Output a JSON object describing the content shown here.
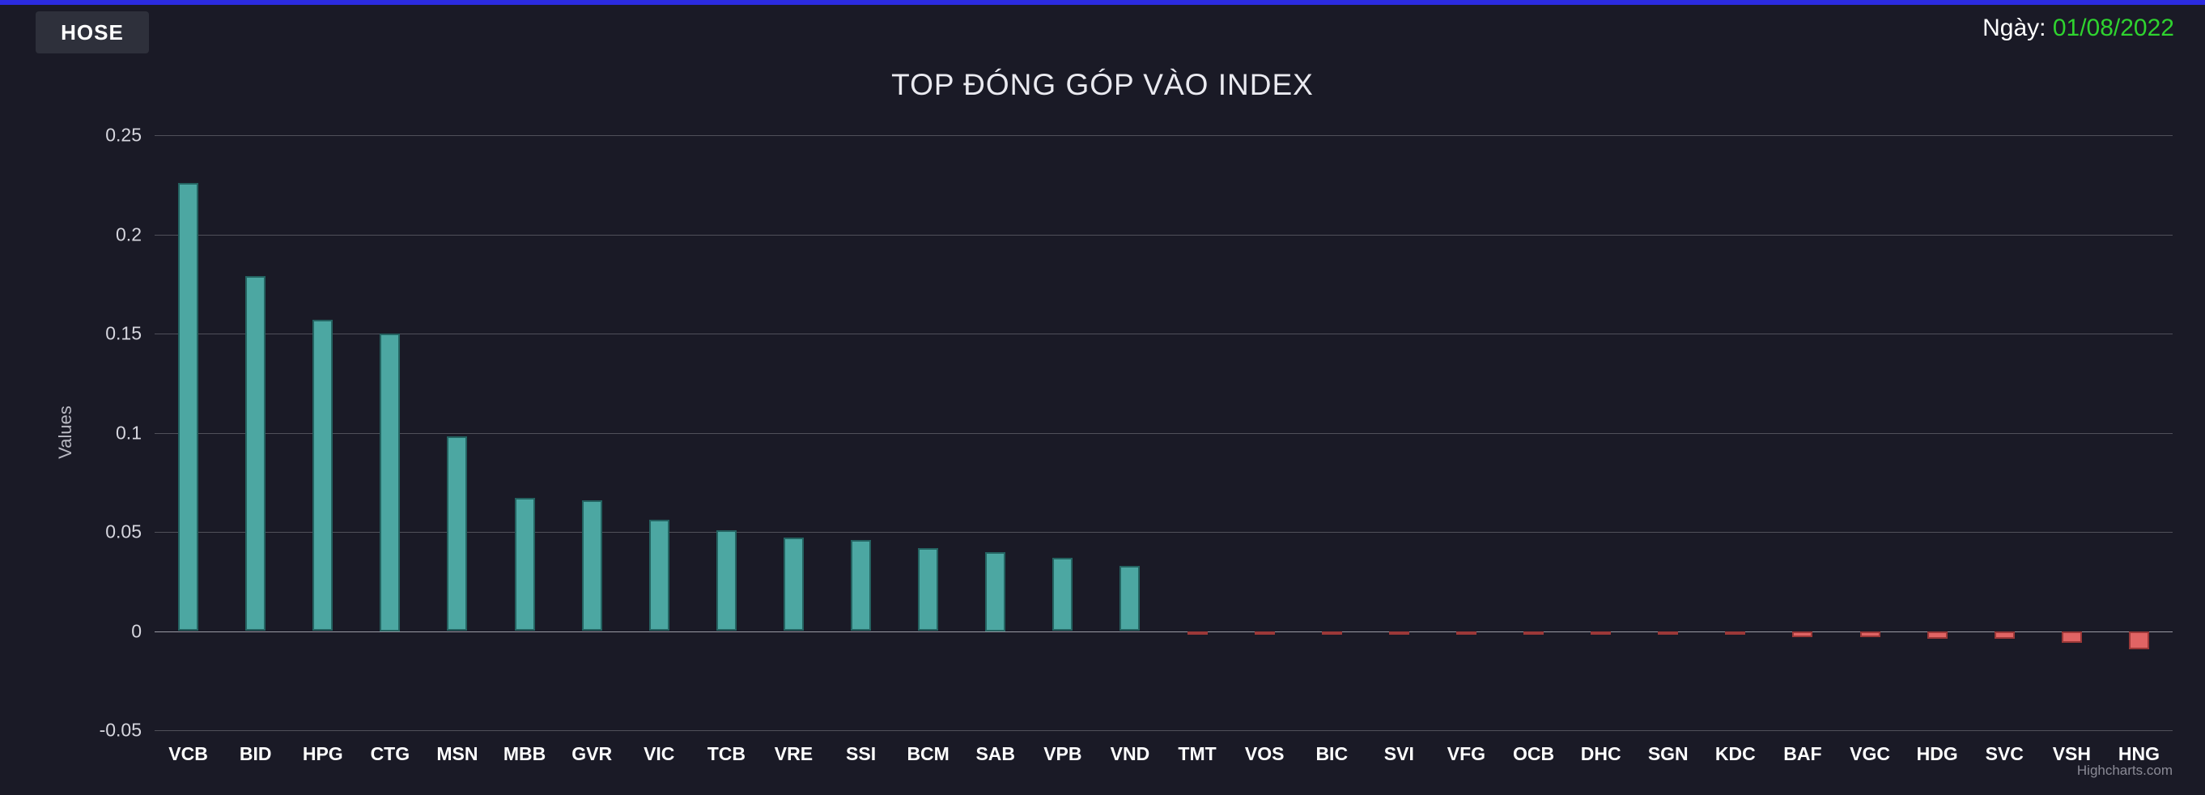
{
  "header": {
    "exchange_label": "HOSE",
    "date_label": "Ngày: ",
    "date_value": "01/08/2022",
    "date_value_color": "#2fd32f",
    "accent_bar_color": "#2b2be0"
  },
  "chart_data": {
    "type": "bar",
    "title": "TOP ĐÓNG GÓP VÀO INDEX",
    "xlabel": "",
    "ylabel": "Values",
    "categories": [
      "VCB",
      "BID",
      "HPG",
      "CTG",
      "MSN",
      "MBB",
      "GVR",
      "VIC",
      "TCB",
      "VRE",
      "SSI",
      "BCM",
      "SAB",
      "VPB",
      "VND",
      "TMT",
      "VOS",
      "BIC",
      "SVI",
      "VFG",
      "OCB",
      "DHC",
      "SGN",
      "KDC",
      "BAF",
      "VGC",
      "HDG",
      "SVC",
      "VSH",
      "HNG"
    ],
    "values": [
      0.226,
      0.179,
      0.157,
      0.15,
      0.098,
      0.067,
      0.066,
      0.056,
      0.051,
      0.047,
      0.046,
      0.042,
      0.04,
      0.037,
      0.033,
      -0.001,
      -0.001,
      -0.001,
      -0.001,
      -0.001,
      -0.002,
      -0.002,
      -0.002,
      -0.002,
      -0.003,
      -0.003,
      -0.004,
      -0.004,
      -0.006,
      -0.009
    ],
    "yticks": [
      "0.25",
      "0.2",
      "0.15",
      "0.1",
      "0.05",
      "0",
      "-0.05"
    ],
    "ylim": [
      -0.05,
      0.25
    ],
    "grid": true,
    "legend": false,
    "positive_color": "#4ca7a2",
    "negative_color": "#e06464",
    "credit": "Highcharts.com"
  }
}
